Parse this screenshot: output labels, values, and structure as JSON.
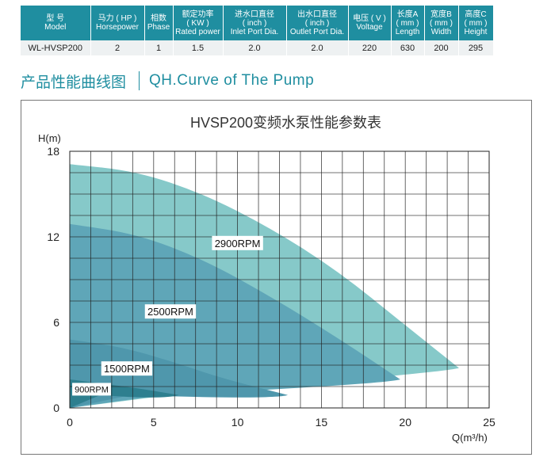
{
  "spec_table": {
    "headers": [
      {
        "cn": "型 号",
        "en": "Model"
      },
      {
        "cn": "马力 ( HP )",
        "en": "Horsepower"
      },
      {
        "cn": "相数",
        "en": "Phase"
      },
      {
        "cn": "额定功率",
        "en": "( KW )",
        "en2": "Rated power"
      },
      {
        "cn": "进水口直径",
        "en": "( inch )",
        "en2": "Inlet Port Dia."
      },
      {
        "cn": "出水口直径",
        "en": "( inch )",
        "en2": "Outlet Port Dia."
      },
      {
        "cn": "电压 ( V )",
        "en": "Voltage"
      },
      {
        "cn": "长度A",
        "en": "( mm )",
        "en2": "Length"
      },
      {
        "cn": "宽度B",
        "en": "( mm )",
        "en2": "Width"
      },
      {
        "cn": "高度C",
        "en": "( mm )",
        "en2": "Height"
      }
    ],
    "row": [
      "WL-HVSP200",
      "2",
      "1",
      "1.5",
      "2.0",
      "2.0",
      "220",
      "630",
      "200",
      "295"
    ]
  },
  "section_title": {
    "cn": "产品性能曲线图",
    "en": "QH.Curve of The Pump"
  },
  "colors": {
    "accent": "#1f8ea0",
    "s2900": "#86c9c9",
    "s2500": "#5fa6b8",
    "s1500": "#4f97ac",
    "s900": "#2e7f8f"
  },
  "chart_data": {
    "type": "area",
    "title": "HVSP200变频水泵性能参数表",
    "xlabel": "Q(m³/h)",
    "ylabel": "H(m)",
    "xlim": [
      0,
      25
    ],
    "ylim": [
      0,
      18
    ],
    "xticks": [
      0,
      5,
      10,
      15,
      20,
      25
    ],
    "yticks": [
      0,
      6,
      12,
      18
    ],
    "grid": true,
    "series": [
      {
        "name": "2900RPM",
        "x": [
          0,
          4,
          8,
          12,
          16,
          20,
          23.2
        ],
        "y": [
          17.1,
          16.6,
          15.0,
          12.6,
          9.6,
          5.8,
          2.8
        ],
        "label_at": [
          10,
          11.4
        ]
      },
      {
        "name": "2500RPM",
        "x": [
          0,
          4,
          8,
          12,
          16,
          19.7
        ],
        "y": [
          12.9,
          12.2,
          10.4,
          7.8,
          4.9,
          2.0
        ],
        "label_at": [
          6,
          6.6
        ]
      },
      {
        "name": "1500RPM",
        "x": [
          0,
          3,
          6,
          9,
          13
        ],
        "y": [
          4.8,
          4.3,
          3.3,
          2.1,
          0.9
        ],
        "label_at": [
          3.4,
          2.6
        ]
      },
      {
        "name": "900RPM",
        "x": [
          0,
          2,
          4.5,
          6.5
        ],
        "y": [
          2.0,
          1.7,
          1.3,
          0.9
        ],
        "label_at": [
          1.3,
          1.2
        ]
      }
    ]
  }
}
